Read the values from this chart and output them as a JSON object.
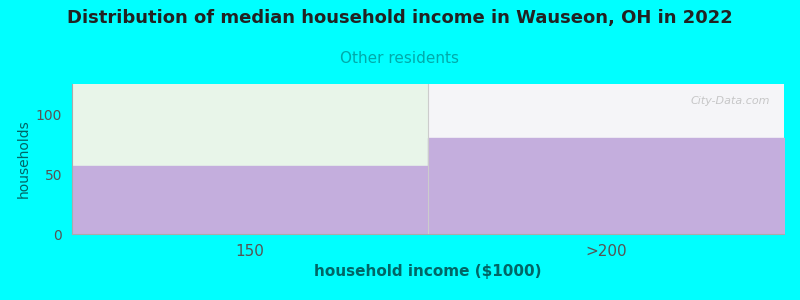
{
  "title": "Distribution of median household income in Wauseon, OH in 2022",
  "subtitle": "Other residents",
  "categories": [
    "150",
    ">200"
  ],
  "values": [
    57,
    80
  ],
  "bar_color": "#c4aedd",
  "plot_bg_color_left": "#e8f5e9",
  "plot_bg_color_right": "#f5f5f8",
  "fig_bg_color": "#00ffff",
  "xlabel": "household income ($1000)",
  "ylabel": "households",
  "ylim": [
    0,
    125
  ],
  "yticks": [
    0,
    50,
    100
  ],
  "title_fontsize": 13,
  "subtitle_fontsize": 11,
  "subtitle_color": "#00aaaa",
  "axis_label_color": "#006666",
  "tick_color": "#555555",
  "watermark": "City-Data.com"
}
